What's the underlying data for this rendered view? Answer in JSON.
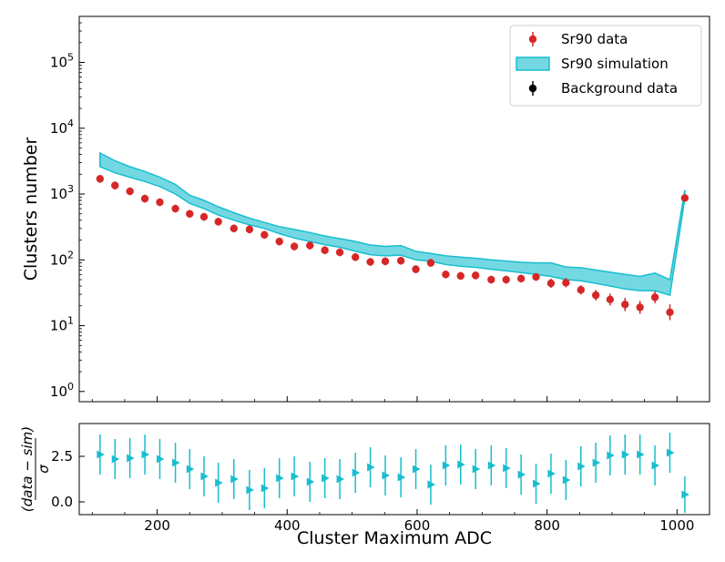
{
  "chart_data": [
    {
      "type": "scatter",
      "panel": "main",
      "yscale": "log",
      "ylabel": "Clusters number",
      "xlim": [
        80,
        1050
      ],
      "ylim": [
        0.7,
        500000
      ],
      "y_ticks": [
        {
          "value": 1,
          "base": "10",
          "exp": "0"
        },
        {
          "value": 10,
          "base": "10",
          "exp": "1"
        },
        {
          "value": 100,
          "base": "10",
          "exp": "2"
        },
        {
          "value": 1000,
          "base": "10",
          "exp": "3"
        },
        {
          "value": 10000,
          "base": "10",
          "exp": "4"
        },
        {
          "value": 100000,
          "base": "10",
          "exp": "5"
        }
      ],
      "legend_position": "top-right",
      "legend": [
        {
          "label": "Sr90 data",
          "kind": "errorpoint",
          "color": "#d62728"
        },
        {
          "label": "Sr90 simulation",
          "kind": "band",
          "color": "#17becf"
        },
        {
          "label": "Background data",
          "kind": "errorpoint",
          "color": "#000000"
        }
      ],
      "series": [
        {
          "name": "Sr90 data",
          "color": "#d62728",
          "x": [
            112,
            135,
            158,
            181,
            204,
            228,
            250,
            272,
            294,
            318,
            342,
            365,
            388,
            411,
            435,
            458,
            481,
            505,
            528,
            551,
            575,
            598,
            621,
            644,
            667,
            690,
            714,
            737,
            760,
            783,
            806,
            829,
            852,
            875,
            897,
            920,
            943,
            966,
            989,
            1012
          ],
          "y": [
            1700,
            1350,
            1100,
            850,
            750,
            600,
            500,
            450,
            380,
            300,
            290,
            240,
            190,
            160,
            165,
            140,
            130,
            110,
            93,
            95,
            97,
            72,
            90,
            60,
            57,
            58,
            50,
            50,
            52,
            55,
            44,
            45,
            35,
            29,
            25,
            21,
            19,
            27,
            16,
            870
          ],
          "yerr": [
            0.06,
            0.06,
            0.06,
            0.06,
            0.06,
            0.06,
            0.06,
            0.06,
            0.06,
            0.06,
            0.06,
            0.06,
            0.06,
            0.06,
            0.06,
            0.06,
            0.06,
            0.06,
            0.06,
            0.06,
            0.06,
            0.06,
            0.06,
            0.06,
            0.06,
            0.06,
            0.06,
            0.06,
            0.06,
            0.06,
            0.07,
            0.07,
            0.07,
            0.08,
            0.09,
            0.1,
            0.1,
            0.09,
            0.12,
            0.05
          ]
        },
        {
          "name": "Sr90 simulation",
          "color": "#17becf",
          "x": [
            112,
            135,
            158,
            181,
            204,
            228,
            250,
            272,
            294,
            318,
            342,
            365,
            388,
            411,
            435,
            458,
            481,
            505,
            528,
            551,
            575,
            598,
            621,
            644,
            667,
            690,
            714,
            737,
            760,
            783,
            806,
            829,
            852,
            875,
            897,
            920,
            943,
            966,
            989,
            1012
          ],
          "low": [
            2600,
            2100,
            1800,
            1550,
            1300,
            1000,
            720,
            600,
            480,
            400,
            340,
            300,
            250,
            215,
            190,
            170,
            155,
            135,
            120,
            115,
            118,
            100,
            95,
            85,
            80,
            77,
            72,
            68,
            64,
            60,
            56,
            50,
            48,
            44,
            40,
            36,
            34,
            34,
            29,
            850
          ],
          "high": [
            4200,
            3200,
            2600,
            2200,
            1800,
            1400,
            960,
            800,
            640,
            520,
            430,
            370,
            320,
            290,
            260,
            230,
            210,
            190,
            168,
            160,
            165,
            135,
            125,
            115,
            110,
            106,
            100,
            96,
            92,
            90,
            90,
            78,
            76,
            70,
            65,
            60,
            56,
            63,
            50,
            1150
          ]
        }
      ]
    },
    {
      "type": "scatter",
      "panel": "ratio",
      "xlabel": "Cluster Maximum ADC",
      "ylabel": "(data − sim) / σ",
      "ylabel_numerator": "(data − sim)",
      "ylabel_denominator": "σ",
      "xlim": [
        80,
        1050
      ],
      "ylim": [
        -0.7,
        4.3
      ],
      "x_ticks": [
        {
          "value": 200,
          "label": "200"
        },
        {
          "value": 400,
          "label": "400"
        },
        {
          "value": 600,
          "label": "600"
        },
        {
          "value": 800,
          "label": "800"
        },
        {
          "value": 1000,
          "label": "1000"
        }
      ],
      "y_ticks": [
        {
          "value": 0,
          "label": "0.0"
        },
        {
          "value": 2.5,
          "label": "2.5"
        }
      ],
      "series": [
        {
          "name": "pull",
          "color": "#17becf",
          "x": [
            112,
            135,
            158,
            181,
            204,
            228,
            250,
            272,
            294,
            318,
            342,
            365,
            388,
            411,
            435,
            458,
            481,
            505,
            528,
            551,
            575,
            598,
            621,
            644,
            667,
            690,
            714,
            737,
            760,
            783,
            806,
            829,
            852,
            875,
            897,
            920,
            943,
            966,
            989,
            1012
          ],
          "y": [
            2.6,
            2.35,
            2.4,
            2.6,
            2.35,
            2.15,
            1.8,
            1.4,
            1.05,
            1.25,
            0.65,
            0.75,
            1.3,
            1.4,
            1.1,
            1.3,
            1.25,
            1.6,
            1.9,
            1.45,
            1.35,
            1.8,
            0.95,
            2.0,
            2.05,
            1.8,
            2.0,
            1.85,
            1.5,
            1.0,
            1.55,
            1.2,
            1.95,
            2.15,
            2.55,
            2.6,
            2.6,
            2.0,
            2.7,
            0.4
          ],
          "yerr": [
            1.1,
            1.1,
            1.1,
            1.1,
            1.1,
            1.1,
            1.1,
            1.1,
            1.1,
            1.1,
            1.1,
            1.1,
            1.1,
            1.1,
            1.1,
            1.1,
            1.1,
            1.1,
            1.1,
            1.1,
            1.1,
            1.1,
            1.1,
            1.1,
            1.1,
            1.1,
            1.1,
            1.1,
            1.1,
            1.1,
            1.1,
            1.1,
            1.1,
            1.1,
            1.1,
            1.1,
            1.1,
            1.1,
            1.1,
            1.0
          ]
        }
      ]
    }
  ]
}
